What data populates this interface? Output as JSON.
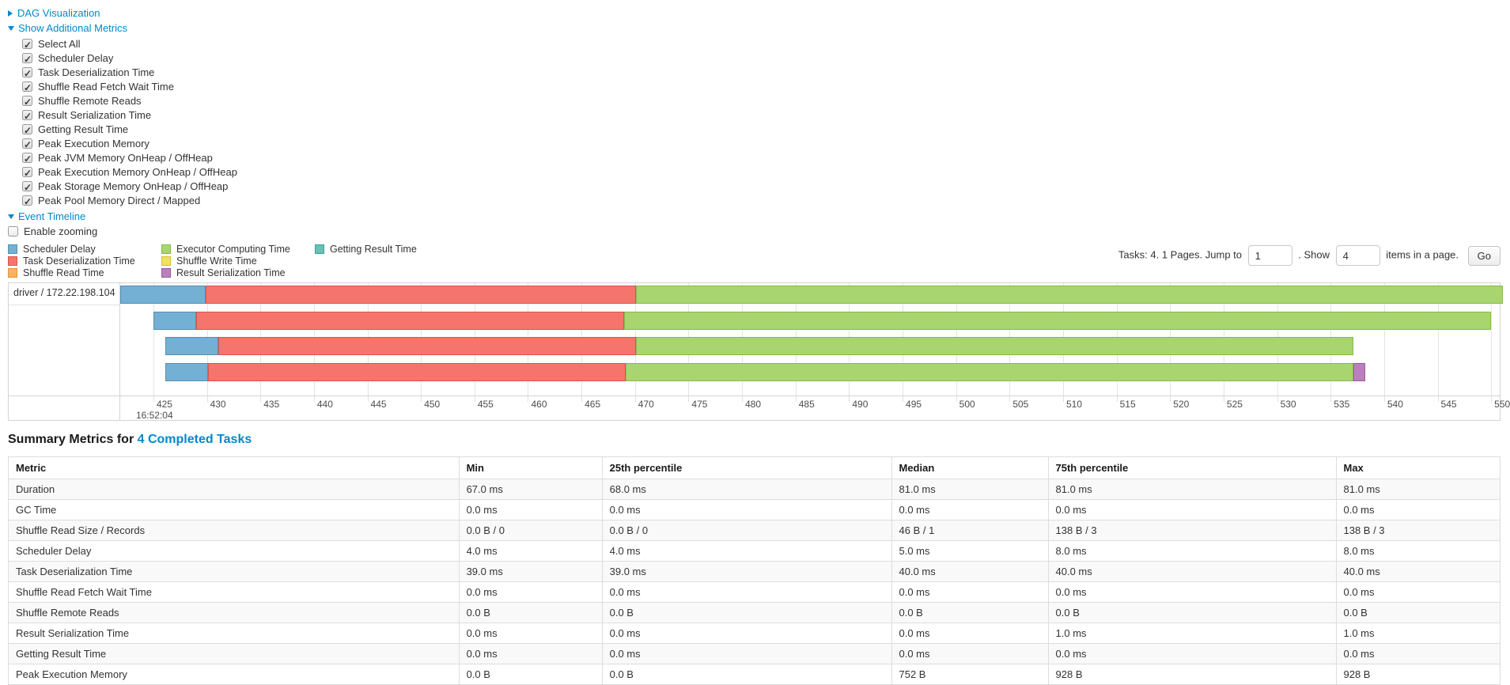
{
  "toggles": {
    "dag_visualization": "DAG Visualization",
    "show_additional_metrics": "Show Additional Metrics",
    "event_timeline": "Event Timeline"
  },
  "metric_checkboxes": [
    {
      "label": "Select All",
      "checked": true
    },
    {
      "label": "Scheduler Delay",
      "checked": true
    },
    {
      "label": "Task Deserialization Time",
      "checked": true
    },
    {
      "label": "Shuffle Read Fetch Wait Time",
      "checked": true
    },
    {
      "label": "Shuffle Remote Reads",
      "checked": true
    },
    {
      "label": "Result Serialization Time",
      "checked": true
    },
    {
      "label": "Getting Result Time",
      "checked": true
    },
    {
      "label": "Peak Execution Memory",
      "checked": true
    },
    {
      "label": "Peak JVM Memory OnHeap / OffHeap",
      "checked": true
    },
    {
      "label": "Peak Execution Memory OnHeap / OffHeap",
      "checked": true
    },
    {
      "label": "Peak Storage Memory OnHeap / OffHeap",
      "checked": true
    },
    {
      "label": "Peak Pool Memory Direct / Mapped",
      "checked": true
    }
  ],
  "enable_zooming": {
    "label": "Enable zooming",
    "checked": false
  },
  "pagination": {
    "tasks_text": "Tasks: 4. 1 Pages. Jump to",
    "jump_value": "1",
    "show_text": ". Show",
    "show_value": "4",
    "items_text": "items in a page.",
    "go_label": "Go"
  },
  "chart_data": {
    "type": "timeline",
    "group_label": "driver / 172.22.198.104",
    "base_time": "16:52:04",
    "axis": {
      "unit": "ms after base time",
      "domain": [
        421.9,
        550.8
      ],
      "ticks": [
        425,
        430,
        435,
        440,
        445,
        450,
        455,
        460,
        465,
        470,
        475,
        480,
        485,
        490,
        495,
        500,
        505,
        510,
        515,
        520,
        525,
        530,
        535,
        540,
        545,
        550
      ]
    },
    "legend": [
      {
        "key": "scheduler_delay",
        "label": "Scheduler Delay",
        "column": 0
      },
      {
        "key": "task_deserialization",
        "label": "Task Deserialization Time",
        "column": 0
      },
      {
        "key": "shuffle_read",
        "label": "Shuffle Read Time",
        "column": 0
      },
      {
        "key": "executor_computing",
        "label": "Executor Computing Time",
        "column": 1
      },
      {
        "key": "shuffle_write",
        "label": "Shuffle Write Time",
        "column": 1
      },
      {
        "key": "result_serialization",
        "label": "Result Serialization Time",
        "column": 1
      },
      {
        "key": "getting_result",
        "label": "Getting Result Time",
        "column": 2
      }
    ],
    "colors": {
      "scheduler_delay": {
        "fill": "#74b0d4",
        "border": "#548fb4"
      },
      "task_deserialization": {
        "fill": "#f5756d",
        "border": "#d9554d"
      },
      "shuffle_read": {
        "fill": "#fbb45c",
        "border": "#dd9338"
      },
      "executor_computing": {
        "fill": "#a8d56f",
        "border": "#87b84c"
      },
      "shuffle_write": {
        "fill": "#f2e15c",
        "border": "#d2c13c"
      },
      "result_serialization": {
        "fill": "#bc7fbe",
        "border": "#9a5b9d"
      },
      "getting_result": {
        "fill": "#65c2b4",
        "border": "#449e91"
      }
    },
    "tasks": [
      {
        "segments": [
          {
            "key": "scheduler_delay",
            "start": 421.9,
            "end": 429.9
          },
          {
            "key": "task_deserialization",
            "start": 429.9,
            "end": 470.1
          },
          {
            "key": "executor_computing",
            "start": 470.1,
            "end": 551.1
          }
        ]
      },
      {
        "segments": [
          {
            "key": "scheduler_delay",
            "start": 425.0,
            "end": 429.0
          },
          {
            "key": "task_deserialization",
            "start": 429.0,
            "end": 469.0
          },
          {
            "key": "executor_computing",
            "start": 469.0,
            "end": 550.0
          }
        ]
      },
      {
        "segments": [
          {
            "key": "scheduler_delay",
            "start": 426.1,
            "end": 431.1
          },
          {
            "key": "task_deserialization",
            "start": 431.1,
            "end": 470.1
          },
          {
            "key": "executor_computing",
            "start": 470.1,
            "end": 537.1
          }
        ]
      },
      {
        "segments": [
          {
            "key": "scheduler_delay",
            "start": 426.1,
            "end": 430.1
          },
          {
            "key": "task_deserialization",
            "start": 430.1,
            "end": 469.1
          },
          {
            "key": "executor_computing",
            "start": 469.1,
            "end": 537.1
          },
          {
            "key": "result_serialization",
            "start": 537.1,
            "end": 538.2
          }
        ]
      }
    ]
  },
  "summary": {
    "title_prefix": "Summary Metrics for ",
    "title_link": "4 Completed Tasks",
    "columns": [
      "Metric",
      "Min",
      "25th percentile",
      "Median",
      "75th percentile",
      "Max"
    ],
    "rows": [
      {
        "metric": "Duration",
        "values": [
          "67.0 ms",
          "68.0 ms",
          "81.0 ms",
          "81.0 ms",
          "81.0 ms"
        ]
      },
      {
        "metric": "GC Time",
        "values": [
          "0.0 ms",
          "0.0 ms",
          "0.0 ms",
          "0.0 ms",
          "0.0 ms"
        ]
      },
      {
        "metric": "Shuffle Read Size / Records",
        "values": [
          "0.0 B / 0",
          "0.0 B / 0",
          "46 B / 1",
          "138 B / 3",
          "138 B / 3"
        ]
      },
      {
        "metric": "Scheduler Delay",
        "values": [
          "4.0 ms",
          "4.0 ms",
          "5.0 ms",
          "8.0 ms",
          "8.0 ms"
        ]
      },
      {
        "metric": "Task Deserialization Time",
        "values": [
          "39.0 ms",
          "39.0 ms",
          "40.0 ms",
          "40.0 ms",
          "40.0 ms"
        ]
      },
      {
        "metric": "Shuffle Read Fetch Wait Time",
        "values": [
          "0.0 ms",
          "0.0 ms",
          "0.0 ms",
          "0.0 ms",
          "0.0 ms"
        ]
      },
      {
        "metric": "Shuffle Remote Reads",
        "values": [
          "0.0 B",
          "0.0 B",
          "0.0 B",
          "0.0 B",
          "0.0 B"
        ]
      },
      {
        "metric": "Result Serialization Time",
        "values": [
          "0.0 ms",
          "0.0 ms",
          "0.0 ms",
          "1.0 ms",
          "1.0 ms"
        ]
      },
      {
        "metric": "Getting Result Time",
        "values": [
          "0.0 ms",
          "0.0 ms",
          "0.0 ms",
          "0.0 ms",
          "0.0 ms"
        ]
      },
      {
        "metric": "Peak Execution Memory",
        "values": [
          "0.0 B",
          "0.0 B",
          "752 B",
          "928 B",
          "928 B"
        ]
      }
    ]
  }
}
